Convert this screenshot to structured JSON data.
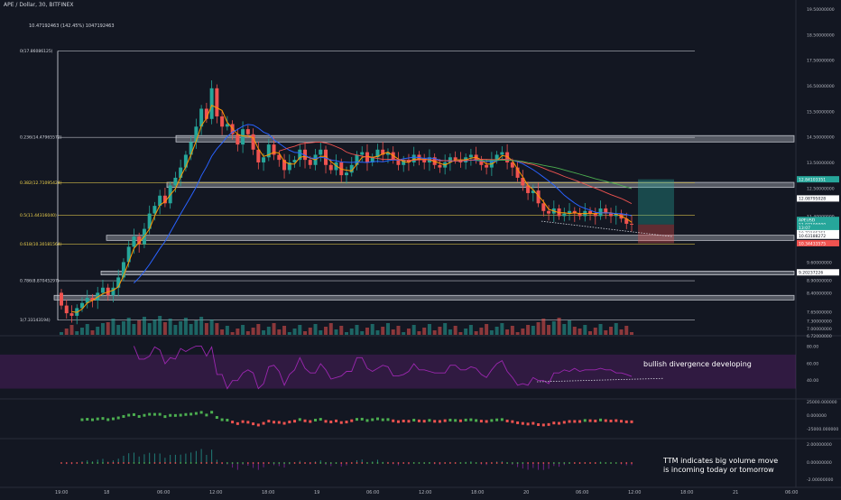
{
  "header": {
    "symbol_title": "APE / Dollar, 30, BITFINEX",
    "fib_info": "10.47192463 (142.45%) 1047192463"
  },
  "price_axis": {
    "ticks": [
      "19.50000000",
      "18.50000000",
      "17.50000000",
      "16.50000000",
      "15.50000000",
      "14.50000000",
      "13.50000000",
      "12.50000000",
      "11.40000000",
      "10.40000000",
      "9.60000000",
      "8.90000000",
      "8.40000000",
      "7.65000000",
      "7.30000000",
      "7.00000000",
      "6.72000000"
    ],
    "badges": [
      {
        "label": "12.84103351",
        "color": "#26a69a"
      },
      {
        "label": "12.08795028",
        "color": "#ffffff"
      },
      {
        "label": "APEUSD",
        "color": "#26a69a"
      },
      {
        "label": "11.07100000",
        "color": "#26a69a"
      },
      {
        "label": "13:07",
        "color": "#26a69a"
      },
      {
        "label": "10.73185351",
        "color": "#ffffff"
      },
      {
        "label": "10.63188272",
        "color": "#ffffff"
      },
      {
        "label": "10.34433575",
        "color": "#ef5350"
      },
      {
        "label": "9.20237226",
        "color": "#ffffff"
      }
    ]
  },
  "fib_levels": [
    {
      "label": "0(17.86086125)",
      "price": 17.86,
      "color": "#d1d4dc"
    },
    {
      "label": "0.236(14.47965572)",
      "price": 14.48,
      "color": "#d1d4dc"
    },
    {
      "label": "0.382(12.71095424)",
      "price": 12.71,
      "color": "#f2d54e"
    },
    {
      "label": "0.5(11.44316040)",
      "price": 11.44,
      "color": "#f2d54e"
    },
    {
      "label": "0.618(10.30181564)",
      "price": 10.3,
      "color": "#f2d54e"
    },
    {
      "label": "0.786(8.87045297)",
      "price": 8.87,
      "color": "#d1d4dc"
    },
    {
      "label": "1(7.33143194)",
      "price": 7.33,
      "color": "#d1d4dc"
    }
  ],
  "time_axis": {
    "labels": [
      "19:00",
      "18",
      "06:00",
      "12:00",
      "18:00",
      "19",
      "06:00",
      "12:00",
      "18:00",
      "20",
      "06:00",
      "12:00",
      "18:00",
      "21",
      "06:00"
    ]
  },
  "rsi_panel": {
    "ticks": [
      "80.00",
      "60.00",
      "40.00"
    ],
    "annotation": "bullish divergence developing"
  },
  "momentum_panel": {
    "ticks": [
      "25000.000000",
      "0.000000",
      "-25000.000000"
    ]
  },
  "ttm_panel": {
    "ticks": [
      "2.00000000",
      "0.00000000",
      "-2.00000000"
    ],
    "annotation_line1": "TTM indicates big volume move",
    "annotation_line2": "is incoming today or tomorrow"
  },
  "colors": {
    "background": "#131722",
    "up": "#26a69a",
    "down": "#ef5350",
    "rsi": "#9c27b0",
    "ema_orange": "#ff9800",
    "ma_blue": "#2962ff"
  },
  "chart_data": {
    "type": "candlestick",
    "xlabels": [
      "19:00",
      "18",
      "06:00",
      "12:00",
      "18:00",
      "19",
      "06:00",
      "12:00",
      "18:00",
      "20",
      "06:00",
      "12:00",
      "18:00",
      "21",
      "06:00"
    ],
    "closes": [
      7.9,
      7.6,
      7.5,
      7.8,
      8.0,
      8.2,
      8.1,
      8.4,
      8.6,
      8.3,
      8.6,
      9.0,
      9.6,
      10.2,
      10.6,
      10.3,
      10.9,
      11.5,
      11.8,
      12.2,
      11.9,
      12.6,
      12.9,
      13.3,
      13.8,
      14.3,
      14.9,
      15.6,
      15.2,
      16.4,
      15.3,
      14.9,
      15.0,
      14.6,
      14.2,
      14.8,
      14.6,
      14.0,
      13.5,
      13.7,
      14.2,
      13.8,
      13.6,
      13.2,
      13.5,
      13.6,
      14.0,
      13.6,
      13.4,
      13.8,
      14.0,
      13.4,
      13.2,
      13.5,
      13.0,
      13.1,
      13.4,
      13.8,
      13.9,
      13.5,
      13.7,
      14.0,
      13.8,
      13.9,
      13.6,
      13.4,
      13.6,
      13.5,
      13.8,
      13.6,
      13.5,
      13.7,
      13.4,
      13.3,
      13.5,
      13.7,
      13.6,
      13.5,
      13.7,
      13.8,
      13.6,
      13.4,
      13.3,
      13.6,
      13.8,
      13.9,
      13.5,
      13.3,
      12.9,
      12.6,
      12.3,
      12.4,
      11.9,
      11.6,
      11.5,
      11.7,
      11.4,
      11.5,
      11.6,
      11.5,
      11.4,
      11.6,
      11.5,
      11.4,
      11.7,
      11.5,
      11.4,
      11.5,
      11.3,
      11.1,
      11.07
    ],
    "ylim": [
      6.72,
      19.5
    ]
  }
}
